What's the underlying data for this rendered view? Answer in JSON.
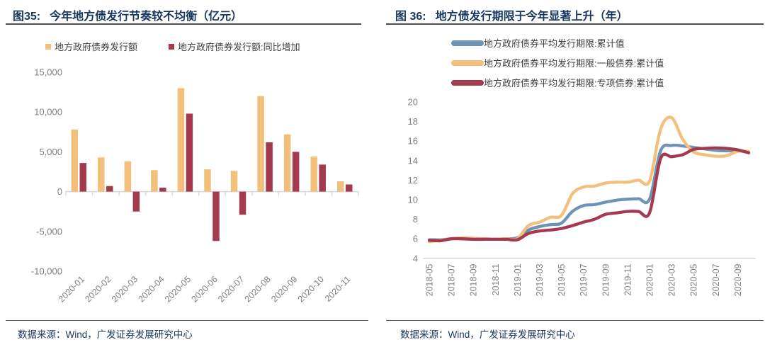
{
  "colors": {
    "navy": "#17375D",
    "axis_text": "#7F7F7F",
    "axis_line": "#D9D9D9",
    "rule": "#4D4D4D",
    "legend_text": "#404040",
    "bar_yellow": "#F3BF7C",
    "bar_red": "#A53A4F",
    "line_blue": "#6D94B6",
    "line_yellow": "#F3BF7C",
    "line_red": "#A53A4F"
  },
  "left_panel": {
    "figure_label": "图35:",
    "title": "今年地方债发行节奏较不均衡（亿元）",
    "source": "数据来源：Wind，广发证券发展研究中心"
  },
  "right_panel": {
    "figure_label": "图 36:",
    "title": "地方债发行期限于今年显著上升（年）",
    "source": "数据来源：Wind，广发证券发展研究中心"
  },
  "chart_data": [
    {
      "type": "bar",
      "title": "今年地方债发行节奏较不均衡（亿元）",
      "unit": "亿元",
      "categories": [
        "2020-01",
        "2020-02",
        "2020-03",
        "2020-04",
        "2020-05",
        "2020-06",
        "2020-07",
        "2020-08",
        "2020-09",
        "2020-10",
        "2020-11"
      ],
      "series": [
        {
          "name": "地方政府债券发行额",
          "color": "#F3BF7C",
          "values": [
            7800,
            4300,
            3800,
            2700,
            13000,
            2800,
            2600,
            12000,
            7200,
            4400,
            1300
          ]
        },
        {
          "name": "地方政府债券发行额:同比增加",
          "color": "#A53A4F",
          "values": [
            3600,
            700,
            -2500,
            500,
            9800,
            -6200,
            -2900,
            6200,
            5000,
            3400,
            900
          ]
        }
      ],
      "ylim": [
        -10000,
        15000
      ],
      "ytick_step": 5000,
      "grid": false,
      "legend_position": "top"
    },
    {
      "type": "line",
      "title": "地方债发行期限于今年显著上升（年）",
      "unit": "年",
      "x": [
        "2018-05",
        "2018-06",
        "2018-07",
        "2018-08",
        "2018-09",
        "2018-10",
        "2018-11",
        "2018-12",
        "2019-01",
        "2019-02",
        "2019-03",
        "2019-04",
        "2019-05",
        "2019-06",
        "2019-07",
        "2019-08",
        "2019-09",
        "2019-10",
        "2019-11",
        "2019-12",
        "2020-01",
        "2020-02",
        "2020-03",
        "2020-04",
        "2020-05",
        "2020-06",
        "2020-07",
        "2020-08",
        "2020-09",
        "2020-10"
      ],
      "xtick_every": 2,
      "series": [
        {
          "name": "地方政府债券平均发行期限:累计值",
          "color": "#6D94B6",
          "values": [
            5.9,
            5.9,
            6.0,
            6.05,
            6.0,
            6.0,
            5.95,
            6.0,
            6.1,
            6.9,
            7.25,
            7.45,
            7.6,
            8.8,
            9.4,
            9.5,
            9.75,
            9.95,
            10.05,
            10.1,
            10.05,
            15.0,
            15.55,
            15.5,
            15.35,
            15.2,
            15.05,
            15.0,
            15.0,
            14.9
          ]
        },
        {
          "name": "地方政府债券平均发行期限:一般债券:累计值",
          "color": "#F3BF7C",
          "values": [
            5.7,
            5.85,
            6.0,
            6.1,
            6.05,
            6.0,
            5.95,
            6.0,
            6.0,
            7.35,
            7.7,
            8.2,
            8.4,
            10.6,
            11.3,
            11.4,
            11.7,
            11.8,
            11.8,
            12.0,
            11.9,
            17.2,
            18.4,
            16.2,
            14.9,
            14.6,
            14.45,
            14.5,
            14.95,
            14.95
          ]
        },
        {
          "name": "地方政府债券平均发行期限:专项债券:累计值",
          "color": "#A53A4F",
          "values": [
            5.85,
            5.8,
            6.0,
            6.0,
            5.95,
            5.95,
            5.95,
            5.95,
            5.9,
            6.55,
            6.8,
            6.9,
            7.05,
            7.35,
            7.7,
            8.0,
            8.5,
            8.65,
            8.8,
            8.8,
            8.65,
            14.2,
            14.4,
            14.6,
            15.15,
            15.25,
            15.3,
            15.25,
            15.1,
            14.8
          ]
        }
      ],
      "ylim": [
        4,
        20
      ],
      "ytick_step": 2,
      "grid": false,
      "legend_position": "top"
    }
  ]
}
